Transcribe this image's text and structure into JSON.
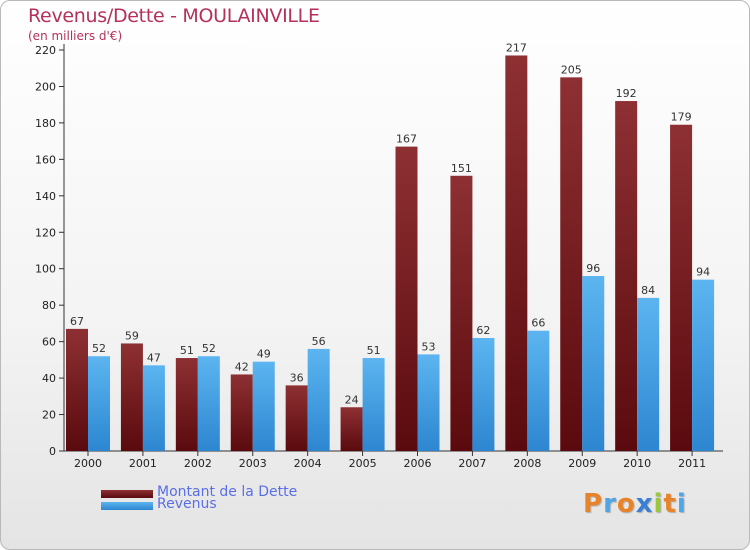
{
  "title": "Revenus/Dette - MOULAINVILLE",
  "subtitle": "(en milliers d'€)",
  "colors": {
    "dette": "#7a1a1e",
    "revenus": "#4da6e8",
    "title": "#b5315b",
    "legend_text": "#5a6ee6"
  },
  "legend": {
    "dette_label": "Montant de la Dette",
    "revenus_label": "Revenus"
  },
  "logo": {
    "letters": [
      "P",
      "r",
      "o",
      "x",
      "i",
      "t",
      "i"
    ],
    "colors": [
      "#e8832a",
      "#4da6e8",
      "#e8832a",
      "#3b7fd4",
      "#9bc83b",
      "#e8832a",
      "#4da6e8"
    ]
  },
  "chart_data": {
    "type": "bar",
    "categories": [
      "2000",
      "2001",
      "2002",
      "2003",
      "2004",
      "2005",
      "2006",
      "2007",
      "2008",
      "2009",
      "2010",
      "2011"
    ],
    "series": [
      {
        "name": "Montant de la Dette",
        "values": [
          67,
          59,
          51,
          42,
          36,
          24,
          167,
          151,
          217,
          205,
          192,
          179
        ]
      },
      {
        "name": "Revenus",
        "values": [
          52,
          47,
          52,
          49,
          56,
          51,
          53,
          62,
          66,
          96,
          84,
          94
        ]
      }
    ],
    "ylim": [
      0,
      220
    ],
    "yticks": [
      0,
      20,
      40,
      60,
      80,
      100,
      120,
      140,
      160,
      180,
      200,
      220
    ],
    "grid": false,
    "legend": "bottom-left"
  }
}
